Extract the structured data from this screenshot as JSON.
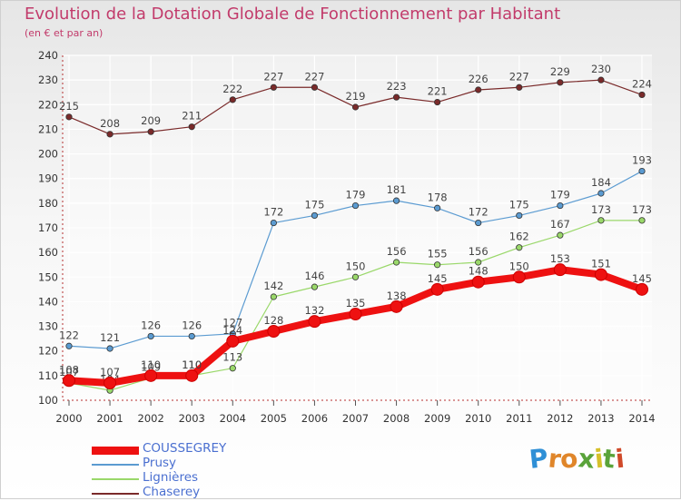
{
  "title": "Evolution de la Dotation Globale de Fonctionnement par Habitant",
  "subtitle": "(en € et par an)",
  "logo": {
    "letters": [
      "P",
      "r",
      "o",
      "x",
      "i",
      "t",
      "i"
    ],
    "colors": [
      "#2e8fd6",
      "#e0862a",
      "#e0862a",
      "#5aa33a",
      "#d6c02a",
      "#5aa33a",
      "#d04a2a"
    ]
  },
  "chart_data": {
    "type": "line",
    "x": [
      "2000",
      "2001",
      "2002",
      "2003",
      "2004",
      "2005",
      "2006",
      "2007",
      "2008",
      "2009",
      "2010",
      "2011",
      "2012",
      "2013",
      "2014"
    ],
    "ylim": [
      100,
      240
    ],
    "yticks": [
      100,
      110,
      120,
      130,
      140,
      150,
      160,
      170,
      180,
      190,
      200,
      210,
      220,
      230,
      240
    ],
    "grid": true,
    "legend_position": "bottom-left",
    "series": [
      {
        "name": "Chaserey",
        "color": "#7a2a2a",
        "values": [
          215,
          208,
          209,
          211,
          222,
          227,
          227,
          219,
          223,
          221,
          226,
          227,
          229,
          230,
          224
        ],
        "style": "thin"
      },
      {
        "name": "Prusy",
        "color": "#5b9bd1",
        "values": [
          122,
          121,
          126,
          126,
          127,
          172,
          175,
          179,
          181,
          178,
          172,
          175,
          179,
          184,
          193
        ],
        "style": "thin"
      },
      {
        "name": "Lignières",
        "color": "#9ad86a",
        "values": [
          107,
          104,
          109,
          110,
          113,
          142,
          146,
          150,
          156,
          155,
          156,
          162,
          167,
          173,
          173
        ],
        "style": "thin"
      },
      {
        "name": "COUSSEGREY",
        "color": "#ee1111",
        "values": [
          108,
          107,
          110,
          110,
          124,
          128,
          132,
          135,
          138,
          145,
          148,
          150,
          153,
          151,
          145
        ],
        "style": "thick"
      }
    ]
  }
}
